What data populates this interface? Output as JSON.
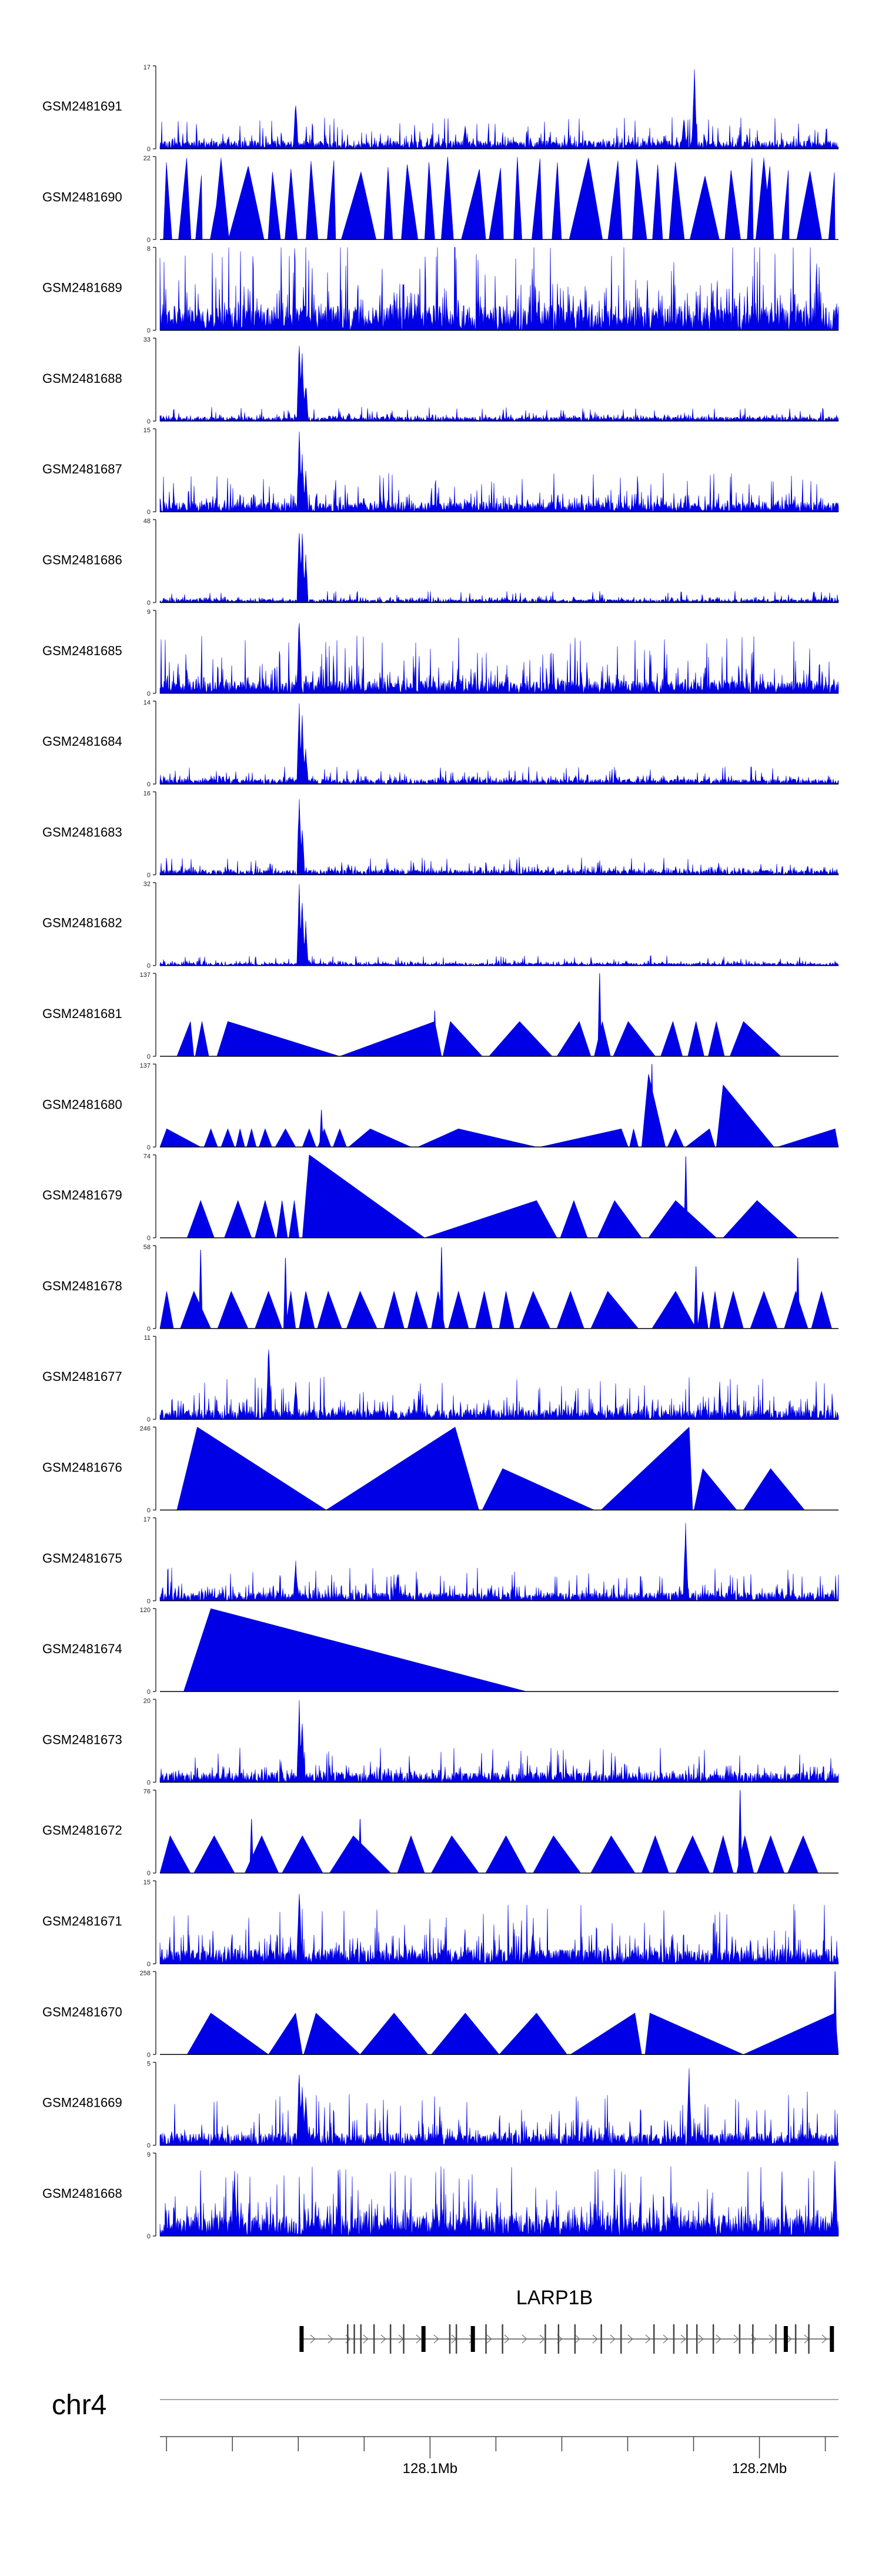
{
  "chart_data": {
    "type": "area",
    "title": "",
    "xlabel": "",
    "ylabel": "",
    "chromosome": "chr4",
    "genome_axis": {
      "range_mb": [
        128.02,
        128.226
      ],
      "ticks_mb": [
        128.022,
        128.042,
        128.062,
        128.082,
        128.102,
        128.122,
        128.142,
        128.162,
        128.182,
        128.202,
        128.222
      ],
      "labeled_ticks": [
        {
          "value": 128.102,
          "label": "128.1Mb"
        },
        {
          "value": 128.202,
          "label": "128.2Mb"
        }
      ]
    },
    "gene": {
      "name": "LARP1B",
      "strand": "+",
      "start_mb": 128.063,
      "end_mb": 128.224,
      "exons_mb": [
        128.063,
        128.077,
        128.079,
        128.081,
        128.085,
        128.09,
        128.094,
        128.1,
        128.108,
        128.11,
        128.115,
        128.119,
        128.124,
        128.137,
        128.141,
        128.146,
        128.154,
        128.16,
        128.17,
        128.176,
        128.18,
        128.183,
        128.188,
        128.196,
        128.2,
        128.207,
        128.21,
        128.213,
        128.217,
        128.224
      ]
    },
    "tracks": [
      {
        "name": "GSM2481691",
        "ymax": "17",
        "style": "noise",
        "seed": 1,
        "density": 1,
        "base": 0.1,
        "spike": 0.28,
        "peaks": [
          {
            "x": 0.2,
            "h": 0.62
          },
          {
            "x": 0.772,
            "h": 0.42
          },
          {
            "x": 0.788,
            "h": 1.0
          },
          {
            "x": 0.45,
            "h": 0.3
          }
        ]
      },
      {
        "name": "GSM2481690",
        "ymax": "22",
        "style": "tri",
        "seed": 2,
        "minW": 0.008,
        "maxW": 0.025,
        "gap": 0.012,
        "hMin": 0.75,
        "hMax": 1.0,
        "wideEvery": 5,
        "peaks": [
          {
            "x": 0.09,
            "h": 1.0
          },
          {
            "x": 0.89,
            "h": 1.0
          }
        ]
      },
      {
        "name": "GSM2481689",
        "ymax": "8",
        "style": "noise",
        "seed": 3,
        "density": 1,
        "base": 0.3,
        "spike": 0.85,
        "peaks": []
      },
      {
        "name": "GSM2481688",
        "ymax": "33",
        "style": "noise",
        "seed": 4,
        "density": 1,
        "base": 0.05,
        "spike": 0.12,
        "peaks": [
          {
            "x": 0.205,
            "h": 1.0
          },
          {
            "x": 0.21,
            "h": 0.9
          },
          {
            "x": 0.215,
            "h": 0.5
          }
        ]
      },
      {
        "name": "GSM2481687",
        "ymax": "15",
        "style": "noise",
        "seed": 5,
        "density": 1,
        "base": 0.12,
        "spike": 0.35,
        "peaks": [
          {
            "x": 0.205,
            "h": 1.0
          },
          {
            "x": 0.21,
            "h": 0.75
          },
          {
            "x": 0.215,
            "h": 0.5
          }
        ]
      },
      {
        "name": "GSM2481686",
        "ymax": "48",
        "style": "noise",
        "seed": 6,
        "density": 1,
        "base": 0.04,
        "spike": 0.1,
        "peaks": [
          {
            "x": 0.205,
            "h": 1.0
          },
          {
            "x": 0.21,
            "h": 0.9
          },
          {
            "x": 0.215,
            "h": 0.6
          }
        ]
      },
      {
        "name": "GSM2481685",
        "ymax": "9",
        "style": "noise",
        "seed": 7,
        "density": 1,
        "base": 0.15,
        "spike": 0.55,
        "peaks": [
          {
            "x": 0.205,
            "h": 1.0
          }
        ]
      },
      {
        "name": "GSM2481684",
        "ymax": "14",
        "style": "noise",
        "seed": 8,
        "density": 1,
        "base": 0.06,
        "spike": 0.15,
        "peaks": [
          {
            "x": 0.205,
            "h": 1.0
          },
          {
            "x": 0.21,
            "h": 0.85
          },
          {
            "x": 0.215,
            "h": 0.45
          }
        ]
      },
      {
        "name": "GSM2481683",
        "ymax": "16",
        "style": "noise",
        "seed": 9,
        "density": 1,
        "base": 0.06,
        "spike": 0.16,
        "peaks": [
          {
            "x": 0.205,
            "h": 1.0
          },
          {
            "x": 0.21,
            "h": 0.6
          }
        ]
      },
      {
        "name": "GSM2481682",
        "ymax": "32",
        "style": "noise",
        "seed": 10,
        "density": 1,
        "base": 0.03,
        "spike": 0.09,
        "peaks": [
          {
            "x": 0.205,
            "h": 1.0
          },
          {
            "x": 0.21,
            "h": 0.9
          },
          {
            "x": 0.215,
            "h": 0.55
          }
        ]
      },
      {
        "name": "GSM2481681",
        "ymax": "137",
        "style": "list",
        "tris": [
          [
            0.025,
            0.045,
            0.05,
            0.42
          ],
          [
            0.052,
            0.062,
            0.072,
            0.42
          ],
          [
            0.084,
            0.1,
            0.265,
            0.42
          ],
          [
            0.265,
            0.405,
            0.415,
            0.42
          ],
          [
            0.417,
            0.428,
            0.475,
            0.42
          ],
          [
            0.485,
            0.53,
            0.578,
            0.42
          ],
          [
            0.585,
            0.618,
            0.635,
            0.42
          ],
          [
            0.64,
            0.652,
            0.664,
            0.42
          ],
          [
            0.668,
            0.69,
            0.73,
            0.42
          ],
          [
            0.738,
            0.756,
            0.77,
            0.42
          ],
          [
            0.778,
            0.79,
            0.802,
            0.42
          ],
          [
            0.808,
            0.82,
            0.832,
            0.42
          ],
          [
            0.84,
            0.86,
            0.915,
            0.42
          ]
        ],
        "spikes": [
          {
            "x": 0.405,
            "h": 0.55
          },
          {
            "x": 0.648,
            "h": 1.0
          }
        ]
      },
      {
        "name": "GSM2481680",
        "ymax": "137",
        "style": "list",
        "tris": [
          [
            0.0,
            0.01,
            0.06,
            0.22
          ],
          [
            0.065,
            0.075,
            0.085,
            0.22
          ],
          [
            0.09,
            0.1,
            0.11,
            0.22
          ],
          [
            0.112,
            0.118,
            0.125,
            0.22
          ],
          [
            0.128,
            0.135,
            0.142,
            0.22
          ],
          [
            0.146,
            0.155,
            0.165,
            0.22
          ],
          [
            0.17,
            0.185,
            0.2,
            0.22
          ],
          [
            0.21,
            0.22,
            0.23,
            0.22
          ],
          [
            0.233,
            0.242,
            0.252,
            0.22
          ],
          [
            0.255,
            0.265,
            0.275,
            0.22
          ],
          [
            0.278,
            0.31,
            0.37,
            0.22
          ],
          [
            0.38,
            0.44,
            0.555,
            0.22
          ],
          [
            0.56,
            0.68,
            0.69,
            0.22
          ],
          [
            0.692,
            0.698,
            0.705,
            0.22
          ],
          [
            0.71,
            0.72,
            0.745,
            0.88
          ],
          [
            0.748,
            0.76,
            0.772,
            0.22
          ],
          [
            0.775,
            0.81,
            0.818,
            0.22
          ],
          [
            0.82,
            0.83,
            0.905,
            0.75
          ],
          [
            0.91,
            0.995,
            1.0,
            0.22
          ]
        ],
        "spikes": [
          {
            "x": 0.725,
            "h": 1.0
          },
          {
            "x": 0.238,
            "h": 0.45
          }
        ]
      },
      {
        "name": "GSM2481679",
        "ymax": "74",
        "style": "list",
        "tris": [
          [
            0.04,
            0.06,
            0.08,
            0.45
          ],
          [
            0.095,
            0.115,
            0.135,
            0.45
          ],
          [
            0.14,
            0.155,
            0.17,
            0.45
          ],
          [
            0.172,
            0.18,
            0.188,
            0.45
          ],
          [
            0.19,
            0.198,
            0.205,
            0.45
          ],
          [
            0.21,
            0.22,
            0.39,
            1.0
          ],
          [
            0.39,
            0.555,
            0.585,
            0.45
          ],
          [
            0.59,
            0.61,
            0.63,
            0.45
          ],
          [
            0.645,
            0.67,
            0.71,
            0.45
          ],
          [
            0.72,
            0.76,
            0.82,
            0.45
          ],
          [
            0.83,
            0.88,
            0.94,
            0.45
          ]
        ],
        "spikes": [
          {
            "x": 0.775,
            "h": 0.98
          }
        ]
      },
      {
        "name": "GSM2481678",
        "ymax": "58",
        "style": "list",
        "tris": [
          [
            0.0,
            0.01,
            0.02,
            0.45
          ],
          [
            0.03,
            0.05,
            0.075,
            0.45
          ],
          [
            0.085,
            0.105,
            0.13,
            0.45
          ],
          [
            0.14,
            0.16,
            0.18,
            0.45
          ],
          [
            0.185,
            0.193,
            0.2,
            0.45
          ],
          [
            0.205,
            0.215,
            0.228,
            0.45
          ],
          [
            0.232,
            0.248,
            0.268,
            0.45
          ],
          [
            0.275,
            0.295,
            0.32,
            0.45
          ],
          [
            0.33,
            0.345,
            0.36,
            0.45
          ],
          [
            0.365,
            0.378,
            0.395,
            0.45
          ],
          [
            0.4,
            0.41,
            0.42,
            0.45
          ],
          [
            0.425,
            0.44,
            0.455,
            0.45
          ],
          [
            0.465,
            0.478,
            0.49,
            0.45
          ],
          [
            0.5,
            0.51,
            0.522,
            0.45
          ],
          [
            0.53,
            0.55,
            0.575,
            0.45
          ],
          [
            0.585,
            0.605,
            0.625,
            0.45
          ],
          [
            0.635,
            0.66,
            0.705,
            0.45
          ],
          [
            0.725,
            0.76,
            0.79,
            0.45
          ],
          [
            0.792,
            0.8,
            0.808,
            0.45
          ],
          [
            0.81,
            0.818,
            0.826,
            0.45
          ],
          [
            0.83,
            0.845,
            0.86,
            0.45
          ],
          [
            0.87,
            0.89,
            0.91,
            0.45
          ],
          [
            0.92,
            0.937,
            0.955,
            0.45
          ],
          [
            0.96,
            0.975,
            0.99,
            0.45
          ]
        ],
        "spikes": [
          {
            "x": 0.06,
            "h": 0.95
          },
          {
            "x": 0.185,
            "h": 0.85
          },
          {
            "x": 0.415,
            "h": 0.98
          },
          {
            "x": 0.79,
            "h": 0.75
          },
          {
            "x": 0.94,
            "h": 0.85
          }
        ]
      },
      {
        "name": "GSM2481677",
        "ymax": "11",
        "style": "noise",
        "seed": 11,
        "density": 1,
        "base": 0.12,
        "spike": 0.4,
        "peaks": [
          {
            "x": 0.16,
            "h": 1.0
          },
          {
            "x": 0.2,
            "h": 0.5
          }
        ]
      },
      {
        "name": "GSM2481676",
        "ymax": "246",
        "style": "list",
        "tris": [
          [
            0.025,
            0.055,
            0.245,
            1.0
          ],
          [
            0.245,
            0.435,
            0.47,
            1.0
          ],
          [
            0.475,
            0.505,
            0.64,
            0.5
          ],
          [
            0.65,
            0.78,
            0.785,
            1.0
          ],
          [
            0.787,
            0.8,
            0.85,
            0.5
          ],
          [
            0.86,
            0.9,
            0.95,
            0.5
          ]
        ],
        "spikes": []
      },
      {
        "name": "GSM2481675",
        "ymax": "17",
        "style": "noise",
        "seed": 12,
        "density": 1,
        "base": 0.1,
        "spike": 0.3,
        "peaks": [
          {
            "x": 0.2,
            "h": 0.5
          },
          {
            "x": 0.775,
            "h": 1.0
          },
          {
            "x": 0.35,
            "h": 0.35
          }
        ]
      },
      {
        "name": "GSM2481674",
        "ymax": "120",
        "style": "list",
        "tris": [
          [
            0.035,
            0.075,
            0.54,
            1.0
          ]
        ],
        "spikes": []
      },
      {
        "name": "GSM2481673",
        "ymax": "20",
        "style": "noise",
        "seed": 13,
        "density": 1,
        "base": 0.12,
        "spike": 0.3,
        "peaks": [
          {
            "x": 0.205,
            "h": 1.0
          },
          {
            "x": 0.21,
            "h": 0.8
          }
        ]
      },
      {
        "name": "GSM2481672",
        "ymax": "76",
        "style": "list",
        "tris": [
          [
            0.0,
            0.015,
            0.045,
            0.45
          ],
          [
            0.05,
            0.08,
            0.11,
            0.45
          ],
          [
            0.125,
            0.15,
            0.175,
            0.45
          ],
          [
            0.18,
            0.21,
            0.24,
            0.45
          ],
          [
            0.25,
            0.285,
            0.34,
            0.45
          ],
          [
            0.35,
            0.37,
            0.39,
            0.45
          ],
          [
            0.4,
            0.43,
            0.47,
            0.45
          ],
          [
            0.48,
            0.51,
            0.54,
            0.45
          ],
          [
            0.55,
            0.58,
            0.62,
            0.45
          ],
          [
            0.635,
            0.665,
            0.7,
            0.45
          ],
          [
            0.71,
            0.73,
            0.75,
            0.45
          ],
          [
            0.76,
            0.785,
            0.81,
            0.45
          ],
          [
            0.815,
            0.83,
            0.845,
            0.45
          ],
          [
            0.85,
            0.862,
            0.875,
            0.45
          ],
          [
            0.88,
            0.9,
            0.92,
            0.45
          ],
          [
            0.925,
            0.948,
            0.97,
            0.45
          ]
        ],
        "spikes": [
          {
            "x": 0.135,
            "h": 0.65
          },
          {
            "x": 0.295,
            "h": 0.65
          },
          {
            "x": 0.855,
            "h": 1.0
          }
        ]
      },
      {
        "name": "GSM2481671",
        "ymax": "15",
        "style": "noise",
        "seed": 14,
        "density": 1,
        "base": 0.18,
        "spike": 0.55,
        "peaks": [
          {
            "x": 0.205,
            "h": 1.0
          }
        ]
      },
      {
        "name": "GSM2481670",
        "ymax": "258",
        "style": "list",
        "tris": [
          [
            0.04,
            0.075,
            0.16,
            0.5
          ],
          [
            0.16,
            0.2,
            0.21,
            0.5
          ],
          [
            0.212,
            0.23,
            0.295,
            0.5
          ],
          [
            0.295,
            0.345,
            0.395,
            0.5
          ],
          [
            0.4,
            0.45,
            0.5,
            0.5
          ],
          [
            0.5,
            0.555,
            0.6,
            0.5
          ],
          [
            0.605,
            0.7,
            0.71,
            0.5
          ],
          [
            0.715,
            0.722,
            0.86,
            0.5
          ],
          [
            0.86,
            0.995,
            1.0,
            0.5
          ]
        ],
        "spikes": [
          {
            "x": 0.995,
            "h": 1.0
          }
        ]
      },
      {
        "name": "GSM2481669",
        "ymax": "5",
        "style": "noise",
        "seed": 15,
        "density": 1,
        "base": 0.15,
        "spike": 0.5,
        "peaks": [
          {
            "x": 0.205,
            "h": 1.0
          },
          {
            "x": 0.21,
            "h": 0.85
          },
          {
            "x": 0.215,
            "h": 0.65
          },
          {
            "x": 0.78,
            "h": 0.95
          }
        ]
      },
      {
        "name": "GSM2481668",
        "ymax": "9",
        "style": "noise",
        "seed": 16,
        "density": 1,
        "base": 0.25,
        "spike": 0.6,
        "peaks": [
          {
            "x": 0.995,
            "h": 1.0
          },
          {
            "x": 0.11,
            "h": 0.8
          }
        ]
      }
    ],
    "colors": {
      "fill": "#0000e6",
      "stroke": "#000000",
      "axis": "#333333"
    }
  }
}
